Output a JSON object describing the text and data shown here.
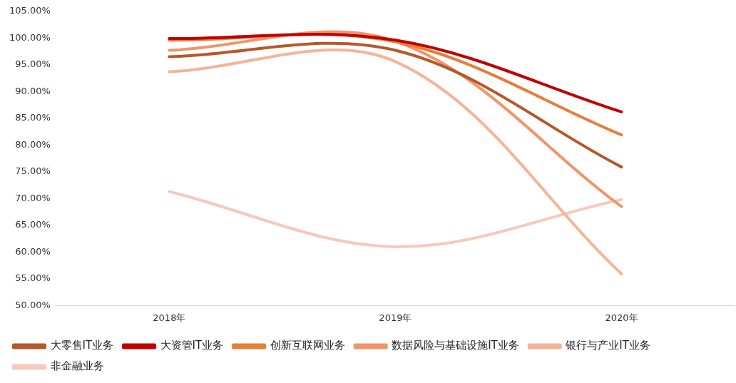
{
  "chart_data": {
    "type": "line",
    "categories": [
      "2018年",
      "2019年",
      "2020年"
    ],
    "series": [
      {
        "name": "大零售IT业务",
        "color": "#b5582a",
        "values": [
          96.5,
          97.7,
          75.9
        ]
      },
      {
        "name": "大资管IT业务",
        "color": "#c00000",
        "values": [
          99.9,
          99.6,
          86.2
        ]
      },
      {
        "name": "创新互联网业务",
        "color": "#e67e35",
        "values": [
          99.6,
          99.3,
          81.9
        ]
      },
      {
        "name": "数据风险与基础设施IT业务",
        "color": "#f0956a",
        "values": [
          97.7,
          99.4,
          68.5
        ]
      },
      {
        "name": "银行与产业IT业务",
        "color": "#f4b49a",
        "values": [
          93.7,
          95.6,
          55.9
        ]
      },
      {
        "name": "非金融业务",
        "color": "#f6c9bb",
        "values": [
          71.3,
          61.0,
          69.8
        ]
      }
    ],
    "ylim": [
      50,
      105
    ],
    "yticks": [
      {
        "value": 50,
        "label": "50.00%"
      },
      {
        "value": 55,
        "label": "55.00%"
      },
      {
        "value": 60,
        "label": "60.00%"
      },
      {
        "value": 65,
        "label": "65.00%"
      },
      {
        "value": 70,
        "label": "70.00%"
      },
      {
        "value": 75,
        "label": "75.00%"
      },
      {
        "value": 80,
        "label": "80.00%"
      },
      {
        "value": 85,
        "label": "85.00%"
      },
      {
        "value": 90,
        "label": "90.00%"
      },
      {
        "value": 95,
        "label": "95.00%"
      },
      {
        "value": 100,
        "label": "100.00%"
      },
      {
        "value": 105,
        "label": "105.00%"
      }
    ],
    "grid": false,
    "legend": "bottom",
    "marker": "none",
    "line_style": "solid"
  }
}
